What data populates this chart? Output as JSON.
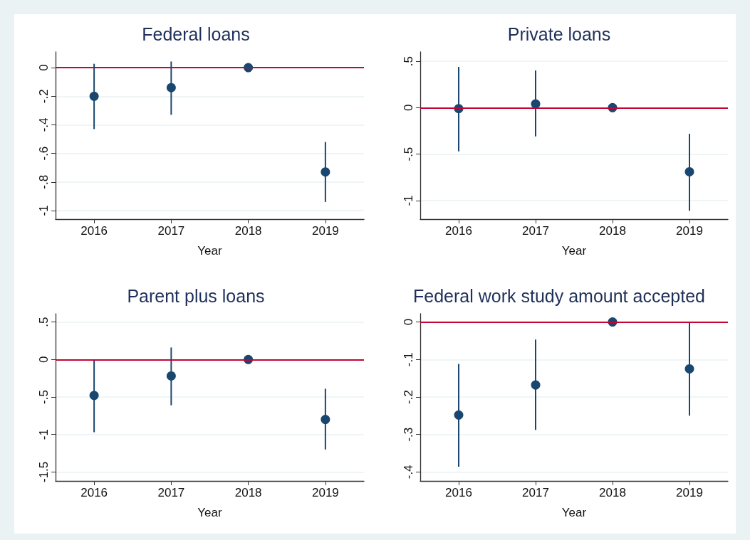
{
  "chart_data": [
    {
      "type": "scatter",
      "title": "Federal loans",
      "xlabel": "Year",
      "x": [
        2016,
        2017,
        2018,
        2019
      ],
      "xlim": [
        2015.5,
        2019.5
      ],
      "xticks": [
        2016,
        2017,
        2018,
        2019
      ],
      "ylim": [
        -1.06,
        0.11
      ],
      "yticks": [
        0,
        {
          "value": -0.2,
          "label": "-.2"
        },
        {
          "value": -0.4,
          "label": "-.4"
        },
        {
          "value": -0.6,
          "label": "-.6"
        },
        {
          "value": -0.8,
          "label": "-.8"
        },
        -1
      ],
      "grid": "y",
      "marker": "circle",
      "series": [
        {
          "color": "#1a476f",
          "values": [
            -0.2,
            -0.14,
            0,
            -0.73
          ],
          "errors": [
            [
              -0.43,
              0.027
            ],
            [
              -0.33,
              0.043
            ],
            null,
            [
              -0.94,
              -0.52
            ]
          ]
        }
      ],
      "ref_lines": [
        {
          "axis": "y",
          "value": 0,
          "color": "#c10534"
        }
      ]
    },
    {
      "type": "scatter",
      "title": "Private loans",
      "xlabel": "Year",
      "x": [
        2016,
        2017,
        2018,
        2019
      ],
      "xlim": [
        2015.5,
        2019.5
      ],
      "xticks": [
        2016,
        2017,
        2018,
        2019
      ],
      "ylim": [
        -1.2,
        0.6
      ],
      "yticks": [
        {
          "value": 0.5,
          "label": ".5"
        },
        0,
        {
          "value": -0.5,
          "label": "-.5"
        },
        -1
      ],
      "grid": "y",
      "marker": "circle",
      "series": [
        {
          "color": "#1a476f",
          "values": [
            -0.01,
            0.04,
            0,
            -0.69
          ],
          "errors": [
            [
              -0.47,
              0.44
            ],
            [
              -0.31,
              0.4
            ],
            null,
            [
              -1.11,
              -0.28
            ]
          ]
        }
      ],
      "ref_lines": [
        {
          "axis": "y",
          "value": 0,
          "color": "#c10534"
        }
      ]
    },
    {
      "type": "scatter",
      "title": "Parent plus loans",
      "xlabel": "Year",
      "x": [
        2016,
        2017,
        2018,
        2019
      ],
      "xlim": [
        2015.5,
        2019.5
      ],
      "xticks": [
        2016,
        2017,
        2018,
        2019
      ],
      "ylim": [
        -1.62,
        0.61
      ],
      "yticks": [
        {
          "value": 0.5,
          "label": ".5"
        },
        0,
        {
          "value": -0.5,
          "label": "-.5"
        },
        -1,
        -1.5
      ],
      "grid": "y",
      "marker": "circle",
      "series": [
        {
          "color": "#1a476f",
          "values": [
            -0.48,
            -0.22,
            0,
            -0.8
          ],
          "errors": [
            [
              -0.97,
              0
            ],
            [
              -0.61,
              0.16
            ],
            null,
            [
              -1.2,
              -0.39
            ]
          ]
        }
      ],
      "ref_lines": [
        {
          "axis": "y",
          "value": 0,
          "color": "#c10534"
        }
      ]
    },
    {
      "type": "scatter",
      "title": "Federal work study amount accepted",
      "xlabel": "Year",
      "x": [
        2016,
        2017,
        2018,
        2019
      ],
      "xlim": [
        2015.5,
        2019.5
      ],
      "xticks": [
        2016,
        2017,
        2018,
        2019
      ],
      "ylim": [
        -0.424,
        0.022
      ],
      "yticks": [
        0,
        {
          "value": -0.1,
          "label": "-.1"
        },
        {
          "value": -0.2,
          "label": "-.2"
        },
        {
          "value": -0.3,
          "label": "-.3"
        },
        {
          "value": -0.4,
          "label": "-.4"
        }
      ],
      "grid": "y",
      "marker": "circle",
      "series": [
        {
          "color": "#1a476f",
          "values": [
            -0.248,
            -0.168,
            0,
            -0.125
          ],
          "errors": [
            [
              -0.386,
              -0.112
            ],
            [
              -0.288,
              -0.047
            ],
            null,
            [
              -0.25,
              0
            ]
          ]
        }
      ],
      "ref_lines": [
        {
          "axis": "y",
          "value": 0,
          "color": "#c10534"
        }
      ]
    }
  ]
}
